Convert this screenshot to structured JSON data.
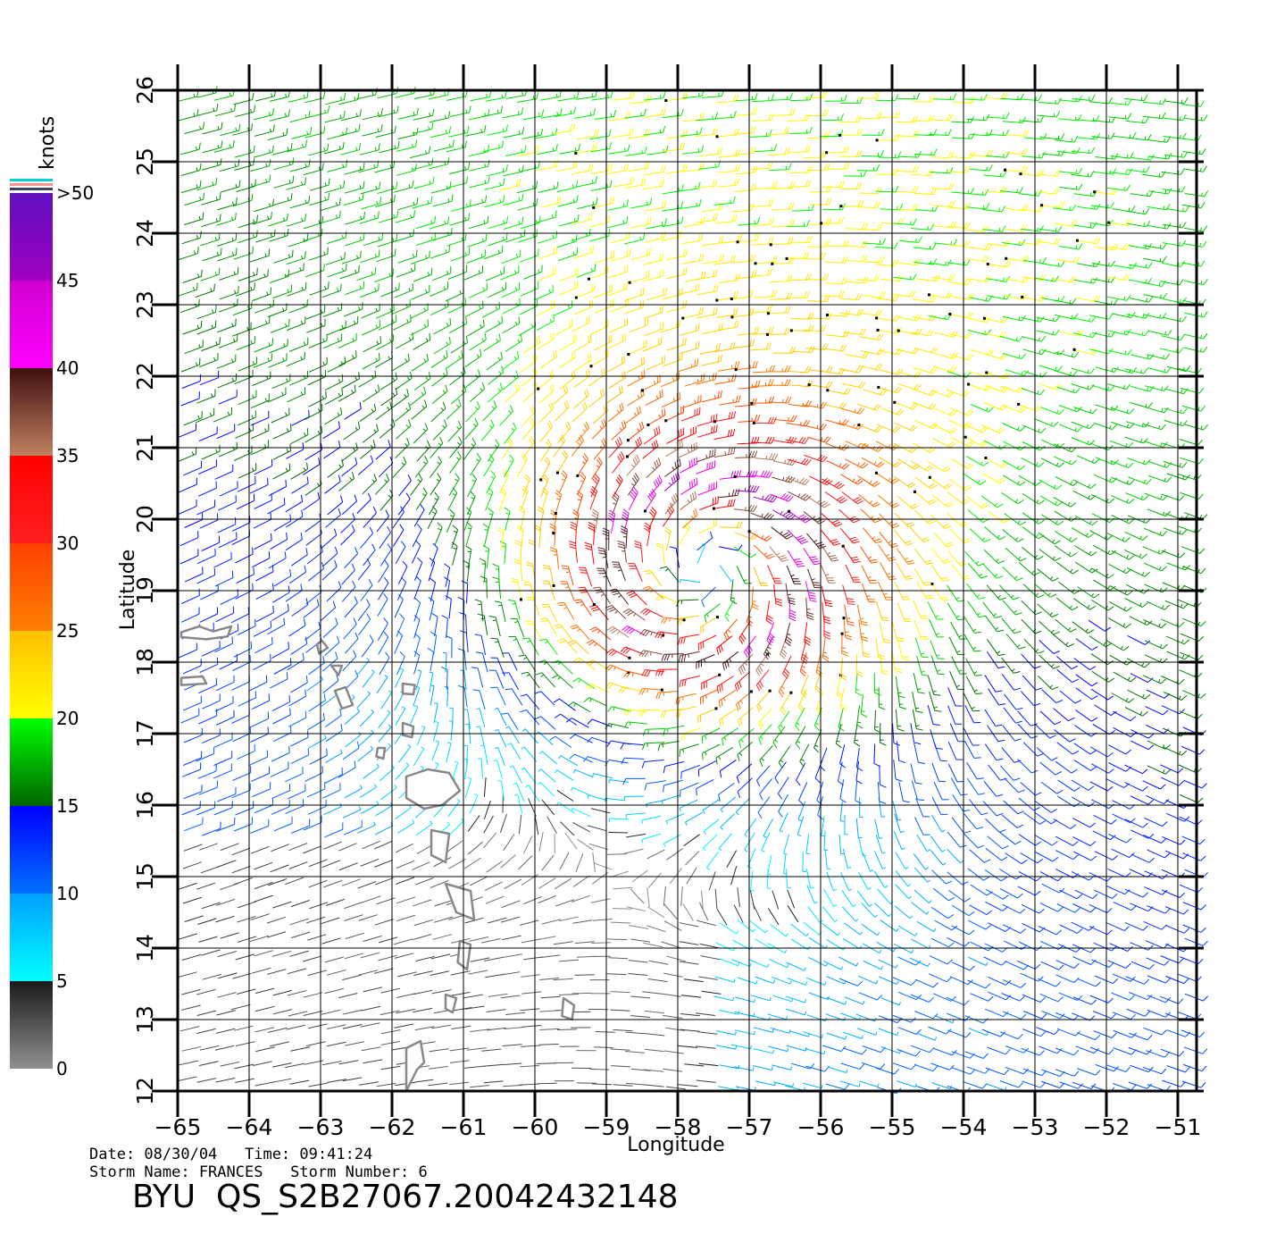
{
  "map": {
    "lon_range": [
      -65,
      -50.6
    ],
    "lat_range": [
      12,
      26
    ],
    "lon_ticks": [
      -65,
      -64,
      -63,
      -62,
      -61,
      -60,
      -59,
      -58,
      -57,
      -56,
      -55,
      -54,
      -53,
      -52,
      -51
    ],
    "lat_ticks": [
      12,
      13,
      14,
      15,
      16,
      17,
      18,
      19,
      20,
      21,
      22,
      23,
      24,
      25,
      26
    ],
    "lon_tick_labels": [
      "−65",
      "−64",
      "−63",
      "−62",
      "−61",
      "−60",
      "−59",
      "−58",
      "−57",
      "−56",
      "−55",
      "−54",
      "−53",
      "−52",
      "−51"
    ],
    "lat_tick_labels": [
      "12",
      "13",
      "14",
      "15",
      "16",
      "17",
      "18",
      "19",
      "20",
      "21",
      "22",
      "23",
      "24",
      "25",
      "26"
    ],
    "xlabel": "Longitude",
    "ylabel": "Latitude",
    "grid": true,
    "storm_center": {
      "lon": -57.6,
      "lat": 19.3
    },
    "wind_field": "cyclonic wind barbs, speed increasing toward center"
  },
  "colorbar": {
    "unit": "knots",
    "labels": [
      "0",
      "5",
      "10",
      "15",
      "20",
      "25",
      "30",
      "35",
      "40",
      "45",
      ">50"
    ],
    "segments": [
      {
        "from": 0,
        "to": 5,
        "colors": [
          "#909090",
          "#1a1a1a"
        ]
      },
      {
        "from": 5,
        "to": 10,
        "colors": [
          "#00ffff",
          "#00a0ff"
        ]
      },
      {
        "from": 10,
        "to": 15,
        "colors": [
          "#0070ff",
          "#0000ff"
        ]
      },
      {
        "from": 15,
        "to": 20,
        "colors": [
          "#006400",
          "#00ff00"
        ]
      },
      {
        "from": 20,
        "to": 25,
        "colors": [
          "#ffff00",
          "#ffbf00"
        ]
      },
      {
        "from": 25,
        "to": 30,
        "colors": [
          "#ff8000",
          "#ff4000"
        ]
      },
      {
        "from": 30,
        "to": 35,
        "colors": [
          "#ff2020",
          "#ff0000"
        ]
      },
      {
        "from": 35,
        "to": 40,
        "colors": [
          "#c08060",
          "#401010"
        ]
      },
      {
        "from": 40,
        "to": 45,
        "colors": [
          "#ff00ff",
          "#d000d0"
        ]
      },
      {
        "from": 45,
        "to": 50,
        "colors": [
          "#a000c0",
          "#6010c0"
        ]
      }
    ]
  },
  "footer": {
    "date_line": "Date: 08/30/04   Time: 09:41:24",
    "storm_line": "Storm Name: FRANCES   Storm Number: 6",
    "product": "BYU  QS_S2B27067.20042432148"
  }
}
